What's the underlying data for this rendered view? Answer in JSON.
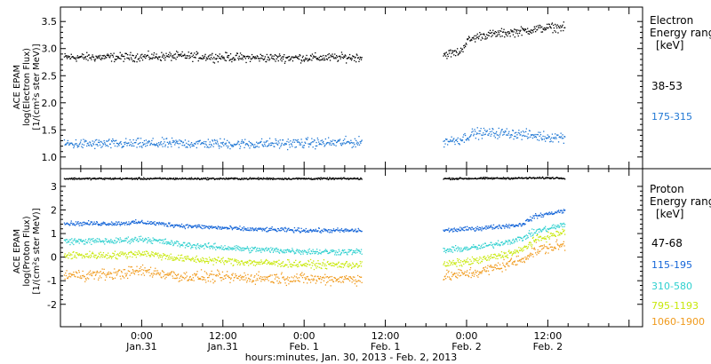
{
  "footer_xlabel": "hours:minutes, Jan. 30, 2013 - Feb. 2, 2013",
  "x_ticks": [
    {
      "h": 24,
      "time": "0:00",
      "date": "Jan.31"
    },
    {
      "h": 36,
      "time": "12:00",
      "date": "Jan.31"
    },
    {
      "h": 48,
      "time": "0:00",
      "date": "Feb. 1"
    },
    {
      "h": 60,
      "time": "12:00",
      "date": "Feb. 1"
    },
    {
      "h": 72,
      "time": "0:00",
      "date": "Feb. 2"
    },
    {
      "h": 84,
      "time": "12:00",
      "date": "Feb. 2"
    }
  ],
  "chart_data": [
    {
      "type": "scatter",
      "panel": "electron",
      "ylabel_lines": [
        "ACE EPAM",
        "log(Electron Flux)",
        "[1/(cm²s ster MeV)]"
      ],
      "legend_title_lines": [
        "Electron",
        "Energy ranges",
        "[keV]"
      ],
      "x_range_hours": [
        12,
        98
      ],
      "gap_hours": [
        56.5,
        68.5
      ],
      "ylim": [
        0.85,
        3.7
      ],
      "y_ticks": [
        1.0,
        1.5,
        2.0,
        2.5,
        3.0,
        3.5
      ],
      "y_tick_labels": [
        "1.0",
        "1.5",
        "2.0",
        "2.5",
        "3.0",
        "3.5"
      ],
      "series": [
        {
          "name": "38-53",
          "color": "#000000",
          "points": [
            [
              12.5,
              2.85
            ],
            [
              20,
              2.85
            ],
            [
              30,
              2.87
            ],
            [
              40,
              2.84
            ],
            [
              50,
              2.84
            ],
            [
              56,
              2.85
            ],
            [
              68.5,
              2.9
            ],
            [
              71,
              2.95
            ],
            [
              72,
              3.15
            ],
            [
              74,
              3.25
            ],
            [
              80,
              3.33
            ],
            [
              84,
              3.4
            ],
            [
              86.5,
              3.4
            ]
          ],
          "noise": 0.06
        },
        {
          "name": "175-315",
          "color": "#1f77d4",
          "points": [
            [
              12.5,
              1.25
            ],
            [
              20,
              1.25
            ],
            [
              30,
              1.26
            ],
            [
              40,
              1.25
            ],
            [
              50,
              1.27
            ],
            [
              56,
              1.28
            ],
            [
              68.5,
              1.3
            ],
            [
              71,
              1.33
            ],
            [
              73,
              1.45
            ],
            [
              78,
              1.45
            ],
            [
              84,
              1.38
            ],
            [
              86.5,
              1.38
            ]
          ],
          "noise": 0.07
        }
      ]
    },
    {
      "type": "scatter",
      "panel": "proton",
      "ylabel_lines": [
        "ACE EPAM",
        "log(Proton Flux)",
        "[1/(cm²s ster MeV)]"
      ],
      "legend_title_lines": [
        "Proton",
        "Energy ranges",
        "[keV]"
      ],
      "x_range_hours": [
        12,
        98
      ],
      "gap_hours": [
        56.5,
        68.5
      ],
      "ylim": [
        -2.8,
        3.6
      ],
      "y_ticks": [
        -2,
        -1,
        0,
        1,
        2,
        3
      ],
      "y_tick_labels": [
        "-2",
        "-1",
        "0",
        "1",
        "2",
        "3"
      ],
      "series": [
        {
          "name": "47-68",
          "color": "#000000",
          "points": [
            [
              12.5,
              3.35
            ],
            [
              30,
              3.35
            ],
            [
              56,
              3.35
            ],
            [
              68.5,
              3.35
            ],
            [
              84,
              3.38
            ],
            [
              86.5,
              3.38
            ]
          ],
          "noise": 0.03
        },
        {
          "name": "115-195",
          "color": "#1565d8",
          "points": [
            [
              12.5,
              1.45
            ],
            [
              20,
              1.45
            ],
            [
              24,
              1.5
            ],
            [
              30,
              1.35
            ],
            [
              40,
              1.2
            ],
            [
              50,
              1.15
            ],
            [
              56,
              1.15
            ],
            [
              68.5,
              1.15
            ],
            [
              74,
              1.25
            ],
            [
              80,
              1.4
            ],
            [
              82,
              1.75
            ],
            [
              86.5,
              2.0
            ]
          ],
          "noise": 0.07
        },
        {
          "name": "310-580",
          "color": "#2fd0cf",
          "points": [
            [
              12.5,
              0.7
            ],
            [
              20,
              0.7
            ],
            [
              24,
              0.8
            ],
            [
              30,
              0.55
            ],
            [
              40,
              0.35
            ],
            [
              50,
              0.25
            ],
            [
              56,
              0.25
            ],
            [
              68.5,
              0.3
            ],
            [
              74,
              0.45
            ],
            [
              80,
              0.8
            ],
            [
              82,
              1.1
            ],
            [
              86.5,
              1.4
            ]
          ],
          "noise": 0.1
        },
        {
          "name": "795-1193",
          "color": "#c8e80a",
          "points": [
            [
              12.5,
              0.1
            ],
            [
              20,
              0.1
            ],
            [
              24,
              0.2
            ],
            [
              30,
              -0.05
            ],
            [
              40,
              -0.2
            ],
            [
              50,
              -0.3
            ],
            [
              56,
              -0.3
            ],
            [
              68.5,
              -0.3
            ],
            [
              74,
              -0.1
            ],
            [
              80,
              0.3
            ],
            [
              82,
              0.75
            ],
            [
              86.5,
              1.1
            ]
          ],
          "noise": 0.12
        },
        {
          "name": "1060-1900",
          "color": "#f09a1c",
          "points": [
            [
              12.5,
              -0.75
            ],
            [
              20,
              -0.7
            ],
            [
              24,
              -0.55
            ],
            [
              30,
              -0.8
            ],
            [
              40,
              -0.85
            ],
            [
              50,
              -0.9
            ],
            [
              56,
              -0.9
            ],
            [
              68.5,
              -0.8
            ],
            [
              74,
              -0.6
            ],
            [
              80,
              -0.1
            ],
            [
              82,
              0.3
            ],
            [
              86.5,
              0.55
            ]
          ],
          "noise": 0.18
        }
      ]
    }
  ]
}
